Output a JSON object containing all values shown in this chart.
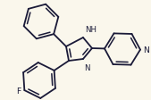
{
  "background_color": "#faf7ec",
  "line_color": "#1a1a38",
  "line_width": 1.3,
  "font_size": 6.2,
  "dpi": 100,
  "fig_width": 1.69,
  "fig_height": 1.13,
  "xlim": [
    0,
    169
  ],
  "ylim": [
    0,
    113
  ]
}
